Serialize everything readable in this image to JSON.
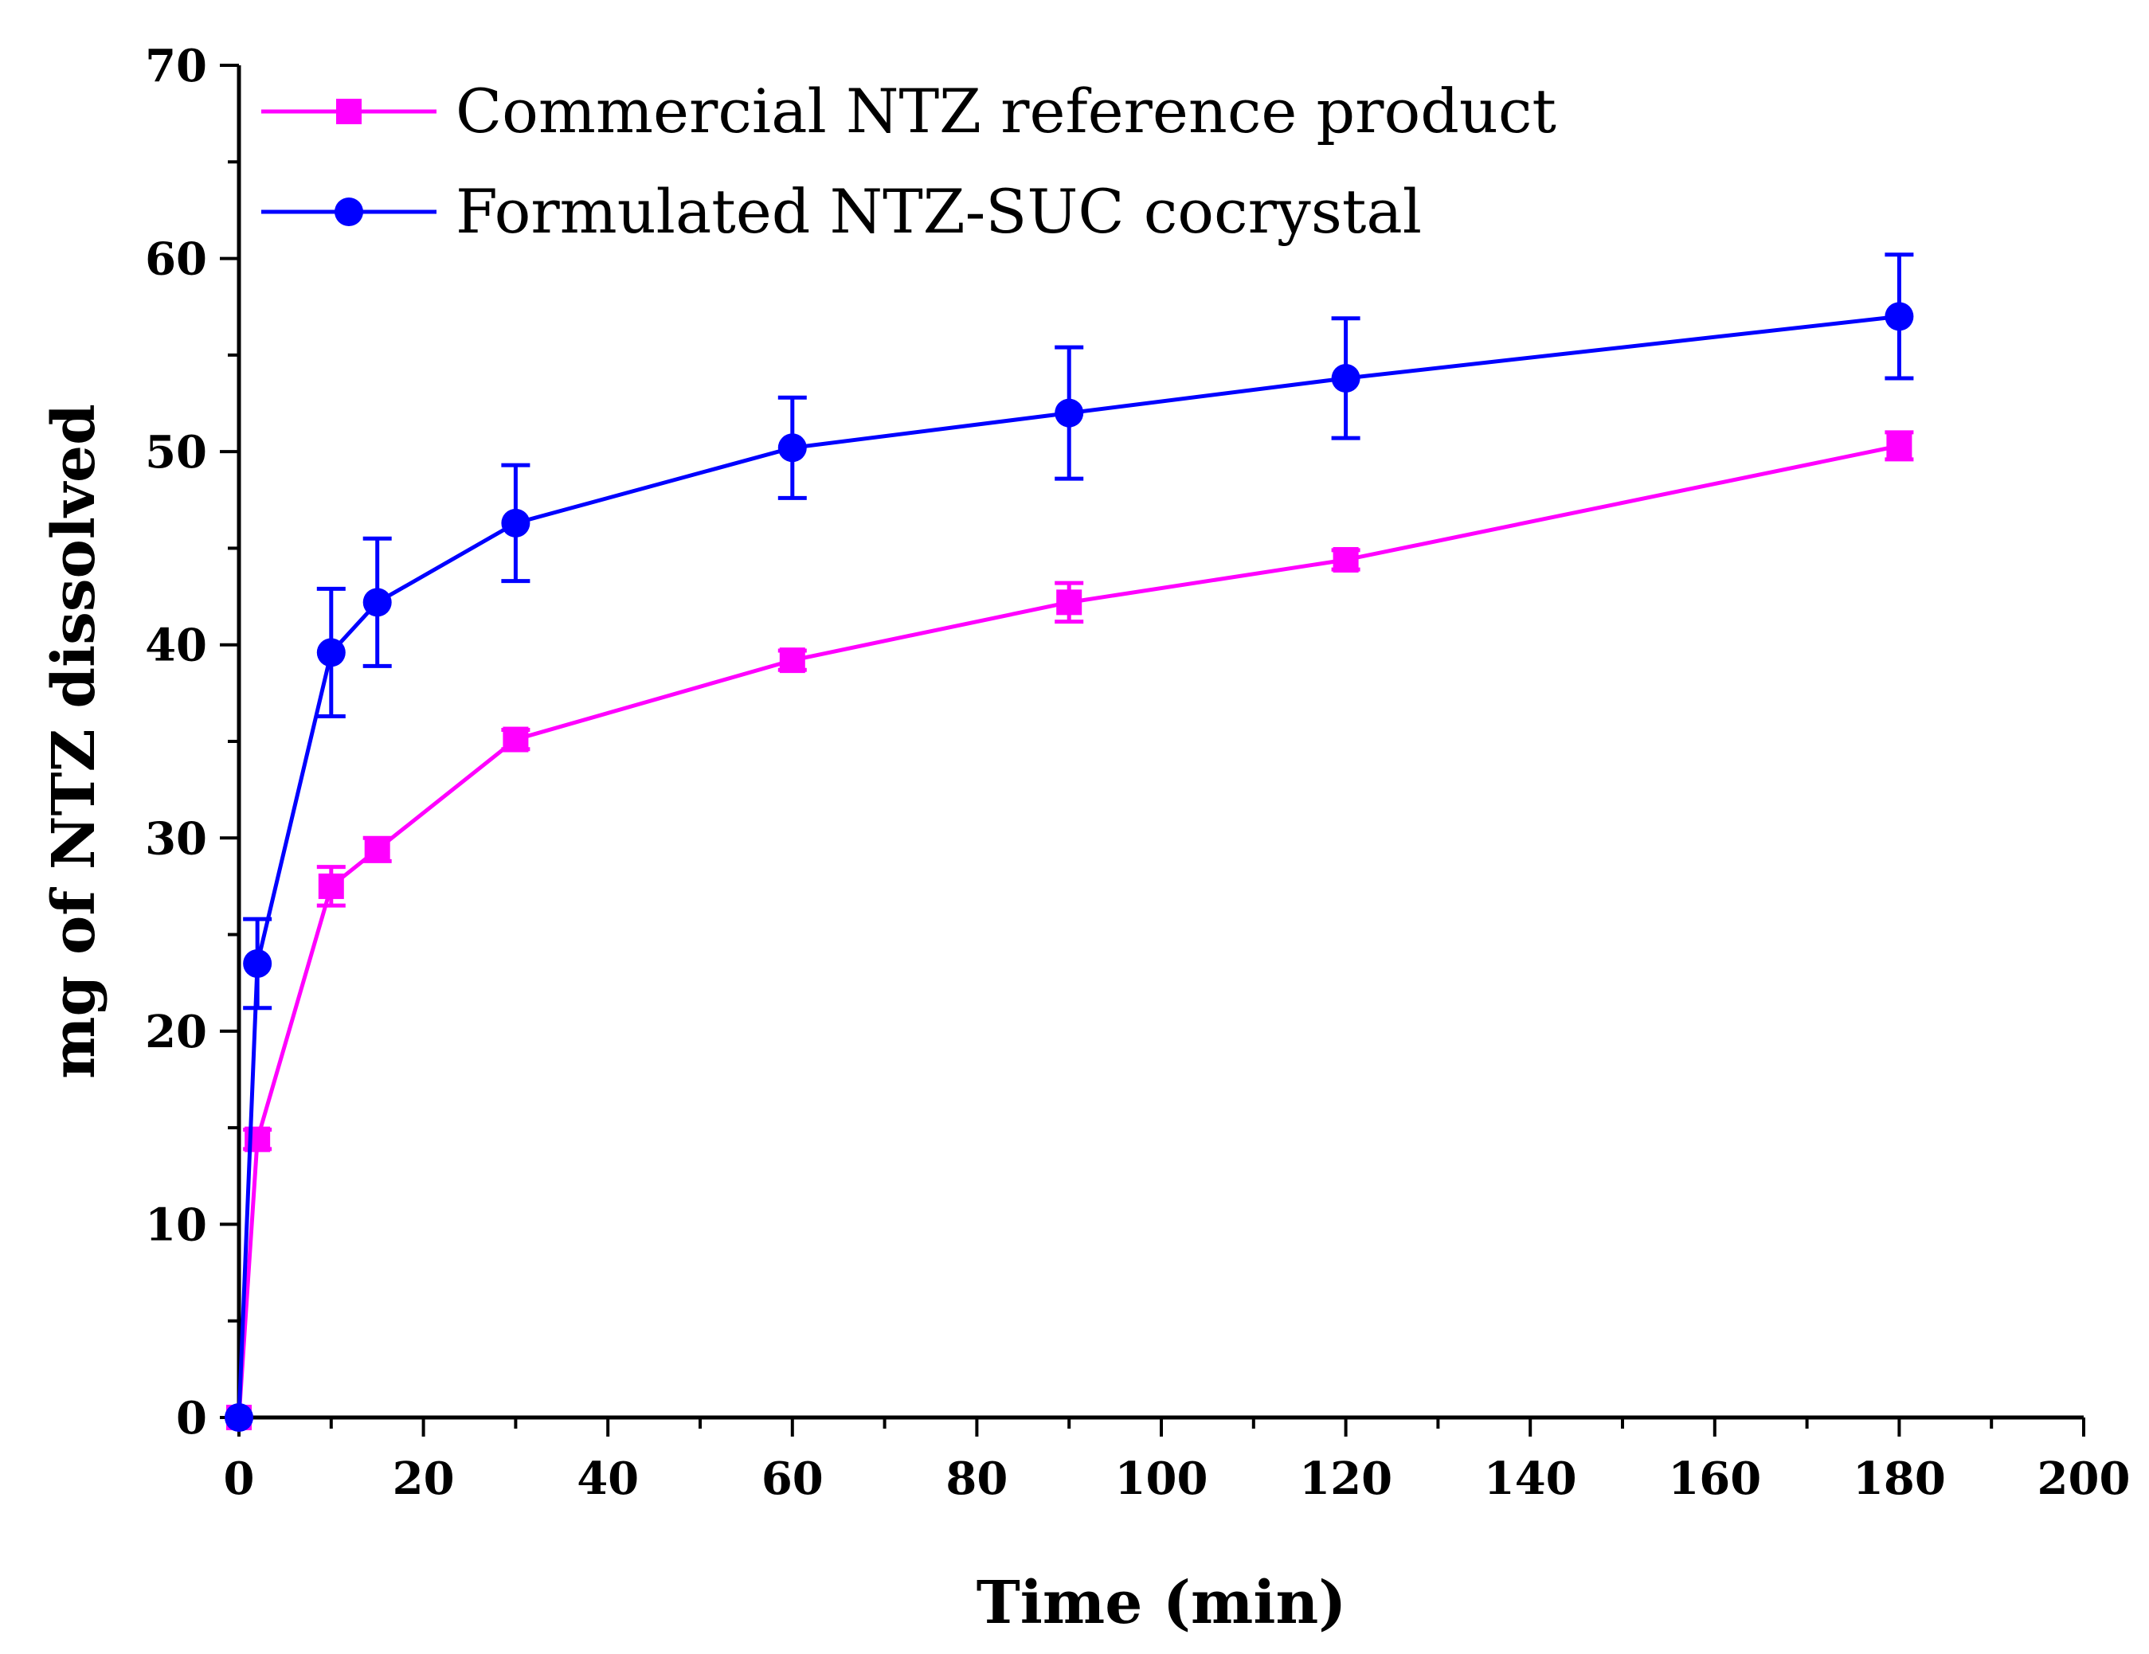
{
  "chart_data": {
    "type": "line",
    "title": "",
    "xlabel": "Time (min)",
    "ylabel": "mg of NTZ dissolved",
    "xlim": [
      0,
      200
    ],
    "ylim": [
      0,
      70
    ],
    "x_ticks": [
      0,
      20,
      40,
      60,
      80,
      100,
      120,
      140,
      160,
      180,
      200
    ],
    "y_ticks": [
      0,
      10,
      20,
      30,
      40,
      50,
      60,
      70
    ],
    "x_tick_labels": [
      "0",
      "20",
      "40",
      "60",
      "80",
      "100",
      "120",
      "140",
      "160",
      "180",
      "200"
    ],
    "y_tick_labels": [
      "0",
      "10",
      "20",
      "30",
      "40",
      "50",
      "60",
      "70"
    ],
    "grid": false,
    "legend_position": "top-left",
    "series": [
      {
        "name": "Commercial NTZ reference product",
        "color": "#ff00ff",
        "marker": "square",
        "x": [
          0,
          2,
          10,
          15,
          30,
          60,
          90,
          120,
          180
        ],
        "y": [
          0,
          14.4,
          27.5,
          29.4,
          35.1,
          39.2,
          42.2,
          44.4,
          50.3
        ],
        "error": [
          0,
          0.5,
          1.0,
          0.6,
          0.5,
          0.5,
          1.0,
          0.5,
          0.7
        ]
      },
      {
        "name": "Formulated NTZ-SUC cocrystal",
        "color": "#0000ff",
        "marker": "circle",
        "x": [
          0,
          2,
          10,
          15,
          30,
          60,
          90,
          120,
          180
        ],
        "y": [
          0,
          23.5,
          39.6,
          42.2,
          46.3,
          50.2,
          52.0,
          53.8,
          57.0
        ],
        "error": [
          0,
          2.3,
          3.3,
          3.3,
          3.0,
          2.6,
          3.4,
          3.1,
          3.2
        ]
      }
    ]
  }
}
